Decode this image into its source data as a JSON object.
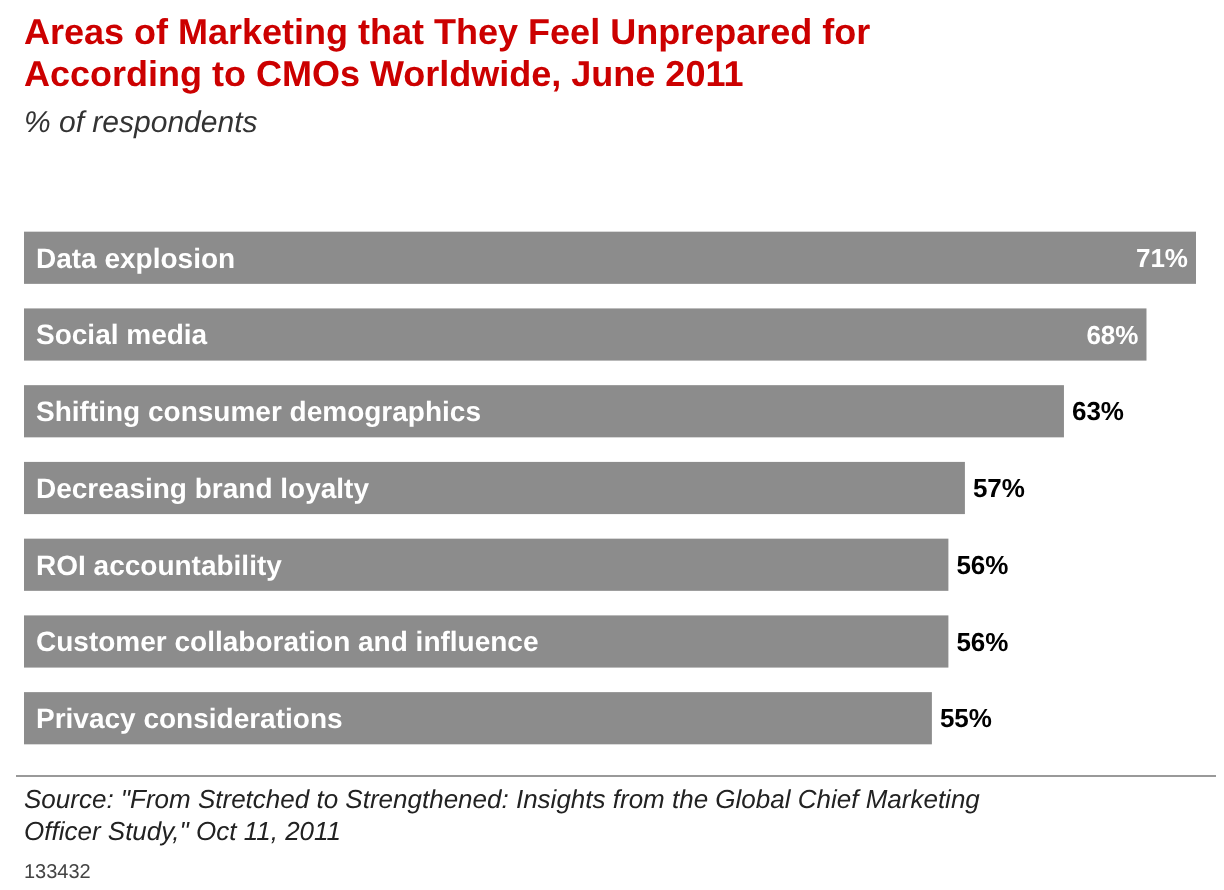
{
  "chart_data": {
    "type": "bar",
    "orientation": "horizontal",
    "title": "Areas of Marketing that They Feel Unprepared for According to CMOs Worldwide, June 2011",
    "subtitle": "% of respondents",
    "categories": [
      "Data explosion",
      "Social media",
      "Shifting consumer demographics",
      "Decreasing brand loyalty",
      "ROI accountability",
      "Customer collaboration and influence",
      "Privacy considerations"
    ],
    "values": [
      71,
      68,
      63,
      57,
      56,
      56,
      55
    ],
    "value_labels": [
      "71%",
      "68%",
      "63%",
      "57%",
      "56%",
      "56%",
      "55%"
    ],
    "color": "#8c8c8c",
    "xlim": [
      0,
      71
    ],
    "annotations": [
      "Source: \"From Stretched to Strengthened: Insights from the Global Chief Marketing Officer Study,\" Oct 11, 2011",
      "133432"
    ]
  }
}
